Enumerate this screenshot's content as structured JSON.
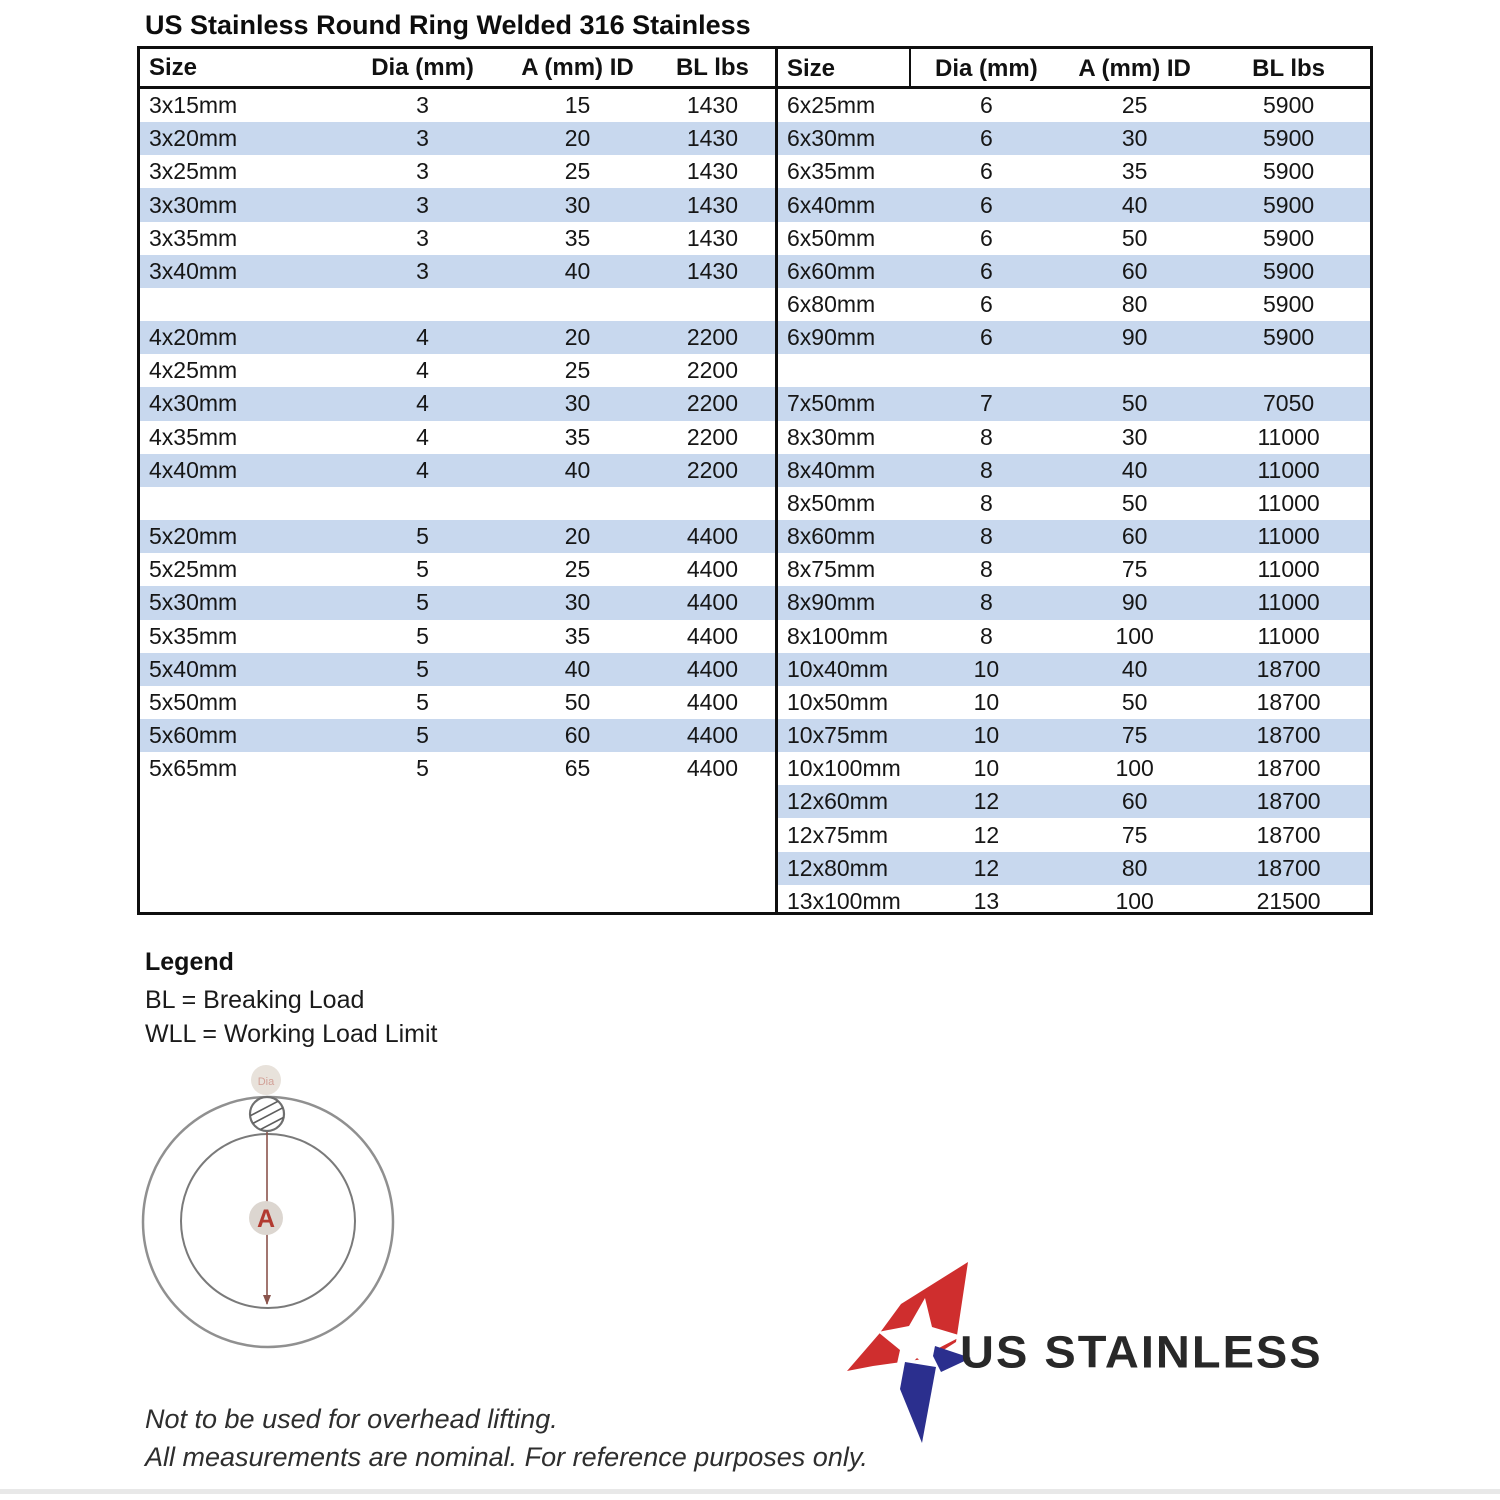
{
  "title": "US Stainless Round Ring Welded 316 Stainless",
  "tables": {
    "headers": [
      "Size",
      "Dia (mm)",
      "A (mm) ID",
      "BL lbs"
    ],
    "left_rows": [
      [
        "3x15mm",
        "3",
        "15",
        "1430"
      ],
      [
        "3x20mm",
        "3",
        "20",
        "1430"
      ],
      [
        "3x25mm",
        "3",
        "25",
        "1430"
      ],
      [
        "3x30mm",
        "3",
        "30",
        "1430"
      ],
      [
        "3x35mm",
        "3",
        "35",
        "1430"
      ],
      [
        "3x40mm",
        "3",
        "40",
        "1430"
      ],
      [
        "",
        "",
        "",
        ""
      ],
      [
        "4x20mm",
        "4",
        "20",
        "2200"
      ],
      [
        "4x25mm",
        "4",
        "25",
        "2200"
      ],
      [
        "4x30mm",
        "4",
        "30",
        "2200"
      ],
      [
        "4x35mm",
        "4",
        "35",
        "2200"
      ],
      [
        "4x40mm",
        "4",
        "40",
        "2200"
      ],
      [
        "",
        "",
        "",
        ""
      ],
      [
        "5x20mm",
        "5",
        "20",
        "4400"
      ],
      [
        "5x25mm",
        "5",
        "25",
        "4400"
      ],
      [
        "5x30mm",
        "5",
        "30",
        "4400"
      ],
      [
        "5x35mm",
        "5",
        "35",
        "4400"
      ],
      [
        "5x40mm",
        "5",
        "40",
        "4400"
      ],
      [
        "5x50mm",
        "5",
        "50",
        "4400"
      ],
      [
        "5x60mm",
        "5",
        "60",
        "4400"
      ],
      [
        "5x65mm",
        "5",
        "65",
        "4400"
      ]
    ],
    "right_rows": [
      [
        "6x25mm",
        "6",
        "25",
        "5900"
      ],
      [
        "6x30mm",
        "6",
        "30",
        "5900"
      ],
      [
        "6x35mm",
        "6",
        "35",
        "5900"
      ],
      [
        "6x40mm",
        "6",
        "40",
        "5900"
      ],
      [
        "6x50mm",
        "6",
        "50",
        "5900"
      ],
      [
        "6x60mm",
        "6",
        "60",
        "5900"
      ],
      [
        "6x80mm",
        "6",
        "80",
        "5900"
      ],
      [
        "6x90mm",
        "6",
        "90",
        "5900"
      ],
      [
        "",
        "",
        "",
        ""
      ],
      [
        "7x50mm",
        "7",
        "50",
        "7050"
      ],
      [
        "8x30mm",
        "8",
        "30",
        "11000"
      ],
      [
        "8x40mm",
        "8",
        "40",
        "11000"
      ],
      [
        "8x50mm",
        "8",
        "50",
        "11000"
      ],
      [
        "8x60mm",
        "8",
        "60",
        "11000"
      ],
      [
        "8x75mm",
        "8",
        "75",
        "11000"
      ],
      [
        "8x90mm",
        "8",
        "90",
        "11000"
      ],
      [
        "8x100mm",
        "8",
        "100",
        "11000"
      ],
      [
        "10x40mm",
        "10",
        "40",
        "18700"
      ],
      [
        "10x50mm",
        "10",
        "50",
        "18700"
      ],
      [
        "10x75mm",
        "10",
        "75",
        "18700"
      ],
      [
        "10x100mm",
        "10",
        "100",
        "18700"
      ],
      [
        "12x60mm",
        "12",
        "60",
        "18700"
      ],
      [
        "12x75mm",
        "12",
        "75",
        "18700"
      ],
      [
        "12x80mm",
        "12",
        "80",
        "18700"
      ],
      [
        "13x100mm",
        "13",
        "100",
        "21500"
      ]
    ]
  },
  "legend": {
    "heading": "Legend",
    "items": [
      "BL = Breaking Load",
      "WLL = Working Load Limit"
    ]
  },
  "diagram": {
    "inner_diameter_label": "A",
    "wire_label": "Dia"
  },
  "logo": {
    "text": "US STAINLESS"
  },
  "footnotes": [
    "Not to be used for overhead lifting.",
    "All measurements are nominal. For reference purposes only."
  ],
  "colors": {
    "band_blue": "#c8d8ee",
    "table_border": "#0f0f0f",
    "logo_red": "#cf2e2e",
    "logo_blue": "#2b2f8e",
    "dimension_line": "#8a544c",
    "label_red": "#b23a30"
  }
}
